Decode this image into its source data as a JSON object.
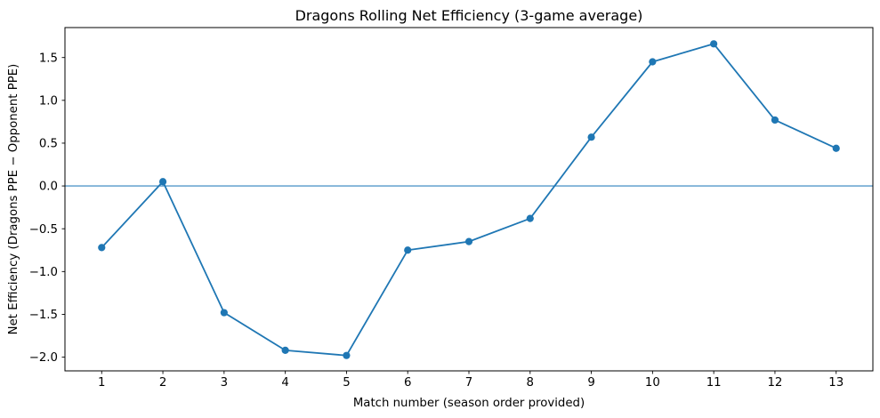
{
  "figure": {
    "background_color": "#ffffff",
    "text_color": "#000000",
    "spine_color": "#000000"
  },
  "chart_data": {
    "type": "line",
    "title": "Dragons Rolling Net Efficiency (3-game average)",
    "xlabel": "Match number (season order provided)",
    "ylabel": "Net Efficiency (Dragons PPE − Opponent PPE)",
    "x": [
      1,
      2,
      3,
      4,
      5,
      6,
      7,
      8,
      9,
      10,
      11,
      12,
      13
    ],
    "values": [
      -0.72,
      0.05,
      -1.48,
      -1.92,
      -1.98,
      -0.75,
      -0.65,
      -0.38,
      0.57,
      1.45,
      1.66,
      0.77,
      0.44
    ],
    "xlim": [
      0.4,
      13.6
    ],
    "ylim": [
      -2.16,
      1.85
    ],
    "xticks": [
      1,
      2,
      3,
      4,
      5,
      6,
      7,
      8,
      9,
      10,
      11,
      12,
      13
    ],
    "xtick_labels": [
      "1",
      "2",
      "3",
      "4",
      "5",
      "6",
      "7",
      "8",
      "9",
      "10",
      "11",
      "12",
      "13"
    ],
    "yticks": [
      -2.0,
      -1.5,
      -1.0,
      -0.5,
      0.0,
      0.5,
      1.0,
      1.5
    ],
    "ytick_labels": [
      "−2.0",
      "−1.5",
      "−1.0",
      "−0.5",
      "0.0",
      "0.5",
      "1.0",
      "1.5"
    ],
    "line_color": "#1f77b4",
    "marker": "circle",
    "marker_radius": 4.1,
    "line_width": 1.8,
    "zero_line": {
      "y": 0,
      "color": "#2d80bd",
      "width": 1.1
    },
    "grid": false,
    "legend": null
  }
}
